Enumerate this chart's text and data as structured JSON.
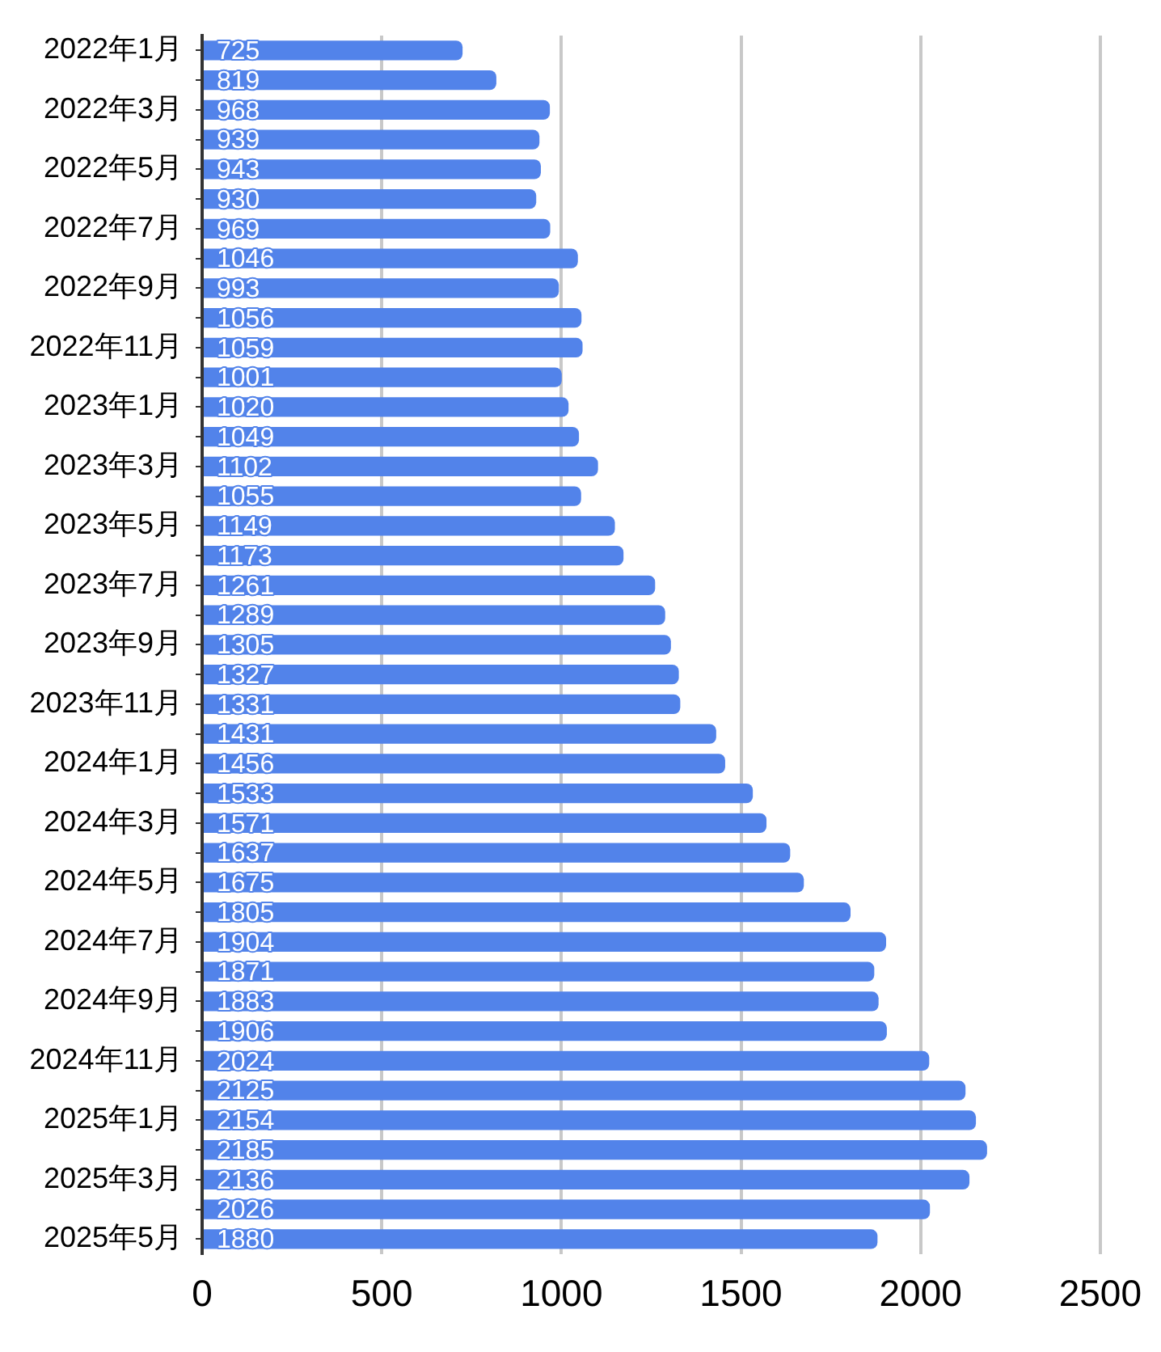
{
  "chart_data": {
    "type": "bar",
    "orientation": "horizontal",
    "categories": [
      "2022年1月",
      null,
      "2022年3月",
      null,
      "2022年5月",
      null,
      "2022年7月",
      null,
      "2022年9月",
      null,
      "2022年11月",
      null,
      "2023年1月",
      null,
      "2023年3月",
      null,
      "2023年5月",
      null,
      "2023年7月",
      null,
      "2023年9月",
      null,
      "2023年11月",
      null,
      "2024年1月",
      null,
      "2024年3月",
      null,
      "2024年5月",
      null,
      "2024年7月",
      null,
      "2024年9月",
      null,
      "2024年11月",
      null,
      "2025年1月",
      null,
      "2025年3月",
      null,
      "2025年5月"
    ],
    "values": [
      725,
      819,
      968,
      939,
      943,
      930,
      969,
      1046,
      993,
      1056,
      1059,
      1001,
      1020,
      1049,
      1102,
      1055,
      1149,
      1173,
      1261,
      1289,
      1305,
      1327,
      1331,
      1431,
      1456,
      1533,
      1571,
      1637,
      1675,
      1805,
      1904,
      1871,
      1883,
      1906,
      2024,
      2125,
      2154,
      2185,
      2136,
      2026,
      1880
    ],
    "color": "#5283ea",
    "xlim": [
      0,
      2500
    ],
    "xticks": [
      0,
      500,
      1000,
      1500,
      2000,
      2500
    ],
    "grid": "x",
    "data_labels": true
  }
}
